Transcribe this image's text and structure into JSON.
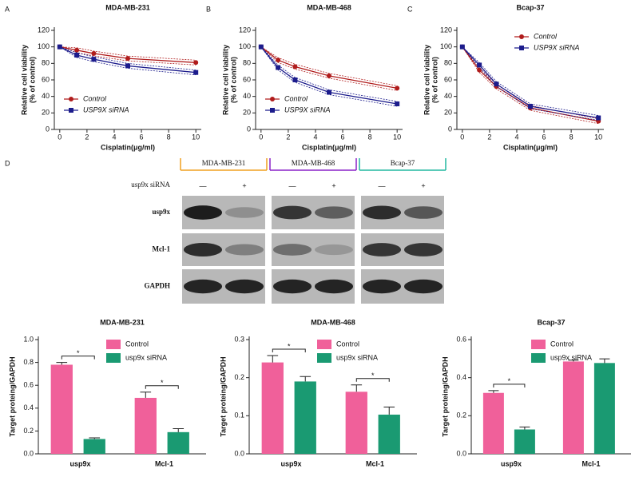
{
  "chart_data": [
    {
      "type": "line",
      "panel": "A",
      "title": "MDA-MB-231",
      "xlabel": "Cisplatin(μg/ml)",
      "ylabel": [
        "Relative cell viability",
        "(% of control)"
      ],
      "x": [
        0,
        1.25,
        2.5,
        5,
        10
      ],
      "xlim": [
        -0.4,
        10.4
      ],
      "xticks": [
        0,
        2,
        4,
        6,
        8,
        10
      ],
      "ylim": [
        0,
        120
      ],
      "yticks": [
        0,
        20,
        40,
        60,
        80,
        100,
        120
      ],
      "legend": "lower left",
      "series": [
        {
          "name": "Control",
          "color": "#b01c1c",
          "marker": "circle",
          "values": [
            100,
            96,
            92,
            86,
            81
          ]
        },
        {
          "name": "USP9X siRNA",
          "color": "#1c1c8c",
          "marker": "square",
          "values": [
            100,
            90,
            85,
            77,
            69
          ]
        }
      ]
    },
    {
      "type": "line",
      "panel": "B",
      "title": "MDA-MB-468",
      "xlabel": "Cisplatin(μg/ml)",
      "ylabel": [
        "Relative cell viability",
        "(% of control)"
      ],
      "x": [
        0,
        1.25,
        2.5,
        5,
        10
      ],
      "xlim": [
        -0.4,
        10.4
      ],
      "xticks": [
        0,
        2,
        4,
        6,
        8,
        10
      ],
      "ylim": [
        0,
        120
      ],
      "yticks": [
        0,
        20,
        40,
        60,
        80,
        100,
        120
      ],
      "legend": "lower left",
      "series": [
        {
          "name": "Control",
          "color": "#b01c1c",
          "marker": "circle",
          "values": [
            100,
            84,
            76,
            65,
            50
          ]
        },
        {
          "name": "USP9X siRNA",
          "color": "#1c1c8c",
          "marker": "square",
          "values": [
            100,
            75,
            60,
            45,
            31
          ]
        }
      ]
    },
    {
      "type": "line",
      "panel": "C",
      "title": "Bcap-37",
      "xlabel": "Cisplatin(μg/ml)",
      "ylabel": [
        "Relative cell viability",
        "(% of control)"
      ],
      "x": [
        0,
        1.25,
        2.5,
        5,
        10
      ],
      "xlim": [
        -0.4,
        10.4
      ],
      "xticks": [
        0,
        2,
        4,
        6,
        8,
        10
      ],
      "ylim": [
        0,
        120
      ],
      "yticks": [
        0,
        20,
        40,
        60,
        80,
        100,
        120
      ],
      "legend": "upper right",
      "series": [
        {
          "name": "Control",
          "color": "#b01c1c",
          "marker": "circle",
          "values": [
            100,
            72,
            52,
            26,
            10
          ]
        },
        {
          "name": "USP9X siRNA",
          "color": "#1c1c8c",
          "marker": "square",
          "values": [
            100,
            78,
            55,
            28,
            14
          ]
        }
      ]
    },
    {
      "type": "bar",
      "title": "MDA-MB-231",
      "ylabel": "Target proteing/GAPDH",
      "categories": [
        "usp9x",
        "Mcl-1"
      ],
      "ylim": [
        0,
        1.0
      ],
      "yticks": [
        {
          "value": 0,
          "label": "0.0"
        },
        0.2,
        0.4,
        0.6,
        0.8,
        {
          "value": 1,
          "label": "1.0"
        }
      ],
      "annotations": [
        "*",
        "*"
      ],
      "series": [
        {
          "name": "Control",
          "color": "#f0609a",
          "values": [
            0.78,
            0.49
          ],
          "errors": [
            0.02,
            0.05
          ]
        },
        {
          "name": "usp9x siRNA",
          "color": "#1a9a72",
          "values": [
            0.13,
            0.19
          ],
          "errors": [
            0.01,
            0.03
          ]
        }
      ]
    },
    {
      "type": "bar",
      "title": "MDA-MB-468",
      "ylabel": "Target proteing/GAPDH",
      "categories": [
        "usp9x",
        "Mcl-1"
      ],
      "ylim": [
        0,
        0.3
      ],
      "yticks": [
        {
          "value": 0,
          "label": "0.0"
        },
        0.1,
        0.2,
        0.3
      ],
      "annotations": [
        "*",
        "*"
      ],
      "series": [
        {
          "name": "Control",
          "color": "#f0609a",
          "values": [
            0.24,
            0.163
          ],
          "errors": [
            0.018,
            0.018
          ]
        },
        {
          "name": "usp9x siRNA",
          "color": "#1a9a72",
          "values": [
            0.19,
            0.103
          ],
          "errors": [
            0.013,
            0.02
          ]
        }
      ]
    },
    {
      "type": "bar",
      "title": "Bcap-37",
      "ylabel": "Target proteing/GAPDH",
      "categories": [
        "usp9x",
        "Mcl-1"
      ],
      "ylim": [
        0,
        0.6
      ],
      "yticks": [
        {
          "value": 0,
          "label": "0.0"
        },
        0.2,
        0.4,
        0.6
      ],
      "annotations": [
        "*",
        null
      ],
      "series": [
        {
          "name": "Control",
          "color": "#f0609a",
          "values": [
            0.32,
            0.485
          ],
          "errors": [
            0.012,
            0.007
          ]
        },
        {
          "name": "usp9x siRNA",
          "color": "#1a9a72",
          "values": [
            0.128,
            0.477
          ],
          "errors": [
            0.013,
            0.022
          ]
        }
      ]
    }
  ],
  "blot": {
    "panel": "D",
    "treatment_label": "usp9x siRNA",
    "conditions": [
      "—",
      "+"
    ],
    "groups": [
      {
        "name": "MDA-MB-231",
        "color": "#f0a020"
      },
      {
        "name": "MDA-MB-468",
        "color": "#8a22c8"
      },
      {
        "name": "Bcap-37",
        "color": "#22b8a0"
      }
    ],
    "rows": [
      "usp9x",
      "Mcl-1",
      "GAPDH"
    ]
  }
}
